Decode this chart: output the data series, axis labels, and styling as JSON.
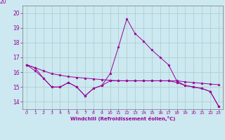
{
  "background_color": "#cce8f0",
  "grid_color": "#aacccc",
  "line_color": "#990099",
  "marker": "*",
  "xlabel": "Windchill (Refroidissement éolien,°C)",
  "xlim": [
    -0.5,
    23.5
  ],
  "ylim": [
    13.5,
    20.5
  ],
  "yticks": [
    14,
    15,
    16,
    17,
    18,
    19,
    20
  ],
  "xticks": [
    0,
    1,
    2,
    3,
    4,
    5,
    6,
    7,
    8,
    9,
    10,
    11,
    12,
    13,
    14,
    15,
    16,
    17,
    18,
    19,
    20,
    21,
    22,
    23
  ],
  "series": [
    {
      "x": [
        0,
        1,
        2,
        3,
        4,
        5,
        6,
        7,
        8,
        9,
        10,
        11,
        12,
        13,
        14,
        15,
        16,
        17,
        18,
        19,
        20,
        21,
        22,
        23
      ],
      "y": [
        16.5,
        16.3,
        16.1,
        15.9,
        15.8,
        15.7,
        15.65,
        15.6,
        15.55,
        15.5,
        15.45,
        15.42,
        15.42,
        15.42,
        15.42,
        15.42,
        15.42,
        15.42,
        15.42,
        15.35,
        15.3,
        15.25,
        15.2,
        15.15
      ]
    },
    {
      "x": [
        0,
        1,
        2,
        3,
        4,
        5,
        6,
        7,
        8,
        9,
        10,
        11,
        12,
        13,
        14,
        15,
        16,
        17,
        18,
        19,
        20,
        21,
        22,
        23
      ],
      "y": [
        16.5,
        16.3,
        15.6,
        15.0,
        15.0,
        15.3,
        15.0,
        14.4,
        14.9,
        15.1,
        15.9,
        17.7,
        19.6,
        18.6,
        18.1,
        17.5,
        17.0,
        16.5,
        15.4,
        15.1,
        15.0,
        14.9,
        14.7,
        13.7
      ]
    },
    {
      "x": [
        0,
        1,
        2,
        3,
        4,
        5,
        6,
        7,
        8,
        9,
        10,
        11,
        12,
        13,
        14,
        15,
        16,
        17,
        18,
        19,
        20,
        21,
        22,
        23
      ],
      "y": [
        16.5,
        16.1,
        15.6,
        15.0,
        15.0,
        15.3,
        15.0,
        14.4,
        14.9,
        15.1,
        15.42,
        15.42,
        15.42,
        15.42,
        15.42,
        15.42,
        15.42,
        15.42,
        15.3,
        15.1,
        15.0,
        14.9,
        14.7,
        13.7
      ]
    }
  ]
}
